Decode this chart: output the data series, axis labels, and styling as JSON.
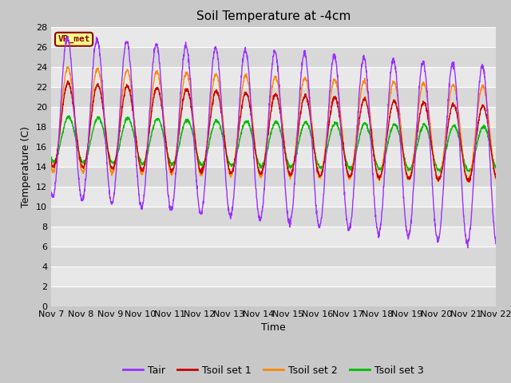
{
  "title": "Soil Temperature at -4cm",
  "xlabel": "Time",
  "ylabel": "Temperature (C)",
  "ylim": [
    0,
    28
  ],
  "site_label": "VR_met",
  "legend_entries": [
    "Tair",
    "Tsoil set 1",
    "Tsoil set 2",
    "Tsoil set 3"
  ],
  "line_colors": [
    "#9b30ff",
    "#cc0000",
    "#ff8800",
    "#00bb00"
  ],
  "background_color": "#c8c8c8",
  "plot_bg_color": "#e0e0e0",
  "grid_color": "#ffffff",
  "alt_band_color": "#d0d0d0",
  "title_fontsize": 11,
  "axis_label_fontsize": 9,
  "tick_fontsize": 8,
  "legend_fontsize": 9,
  "xtick_labels": [
    "Nov 7",
    "Nov 8",
    "Nov 9",
    "Nov 10",
    "Nov 11",
    "Nov 12",
    "Nov 13",
    "Nov 14",
    "Nov 15",
    "Nov 16",
    "Nov 17",
    "Nov 18",
    "Nov 19",
    "Nov 20",
    "Nov 21",
    "Nov 22"
  ],
  "n_days": 15
}
